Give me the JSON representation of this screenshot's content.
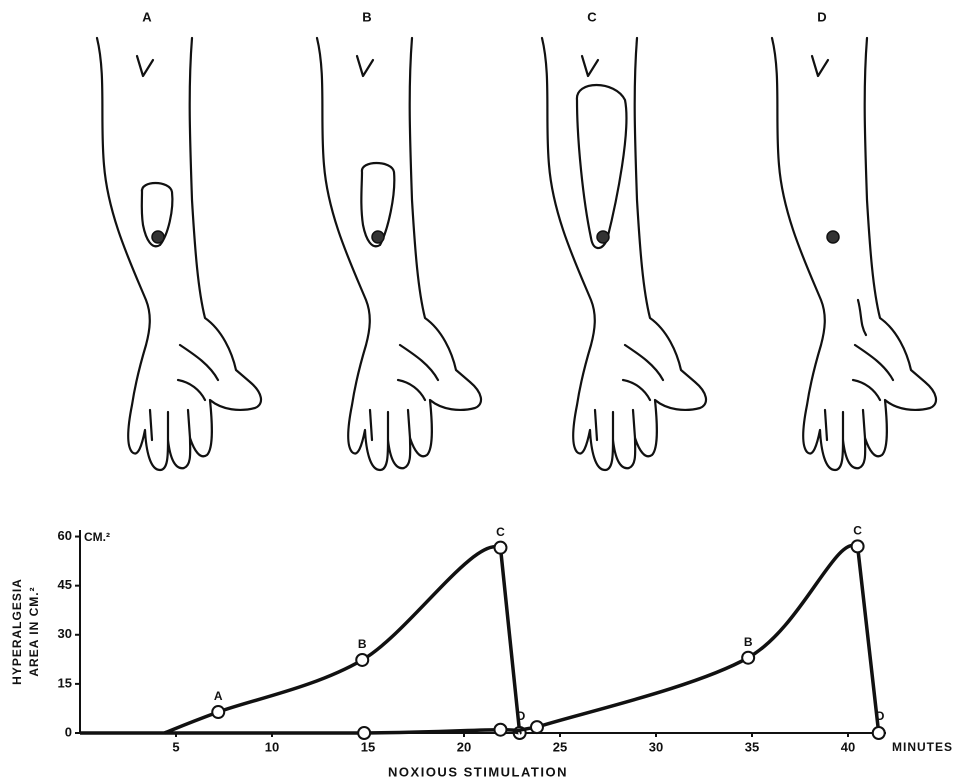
{
  "chart_data": {
    "type": "line",
    "panel_labels": [
      "A",
      "B",
      "C",
      "D"
    ],
    "ylabel": [
      "HYPERALGESIA",
      "AREA IN CM.²"
    ],
    "y_unit": "CM.²",
    "xlabel": "NOXIOUS STIMULATION",
    "x_unit": "MINUTES",
    "xlim": [
      0,
      42
    ],
    "xticks": [
      5,
      10,
      15,
      20,
      25,
      30,
      35,
      40
    ],
    "ylim": [
      0,
      62
    ],
    "yticks": [
      0,
      15,
      30,
      45,
      60
    ],
    "color": "#111111",
    "series": [
      {
        "x": [
          4.4,
          7.2,
          14.7,
          21.9,
          22.9
        ],
        "values": [
          0,
          6.4,
          22.3,
          56.6,
          0
        ],
        "point_labels": [
          null,
          "A",
          "B",
          "C",
          "D"
        ],
        "markers": [
          false,
          true,
          true,
          true,
          false
        ]
      },
      {
        "x": [
          0,
          14.8,
          21.9,
          22.9
        ],
        "values": [
          0,
          0,
          1,
          0
        ],
        "point_labels": [
          null,
          null,
          null,
          null
        ],
        "markers": [
          false,
          true,
          true,
          true
        ]
      },
      {
        "x": [
          22.9,
          23.8,
          34.8,
          40.5,
          41.6
        ],
        "values": [
          0,
          1.8,
          23,
          57,
          0
        ],
        "point_labels": [
          null,
          null,
          "B",
          "C",
          "D"
        ],
        "markers": [
          false,
          true,
          true,
          true,
          true
        ]
      }
    ]
  }
}
